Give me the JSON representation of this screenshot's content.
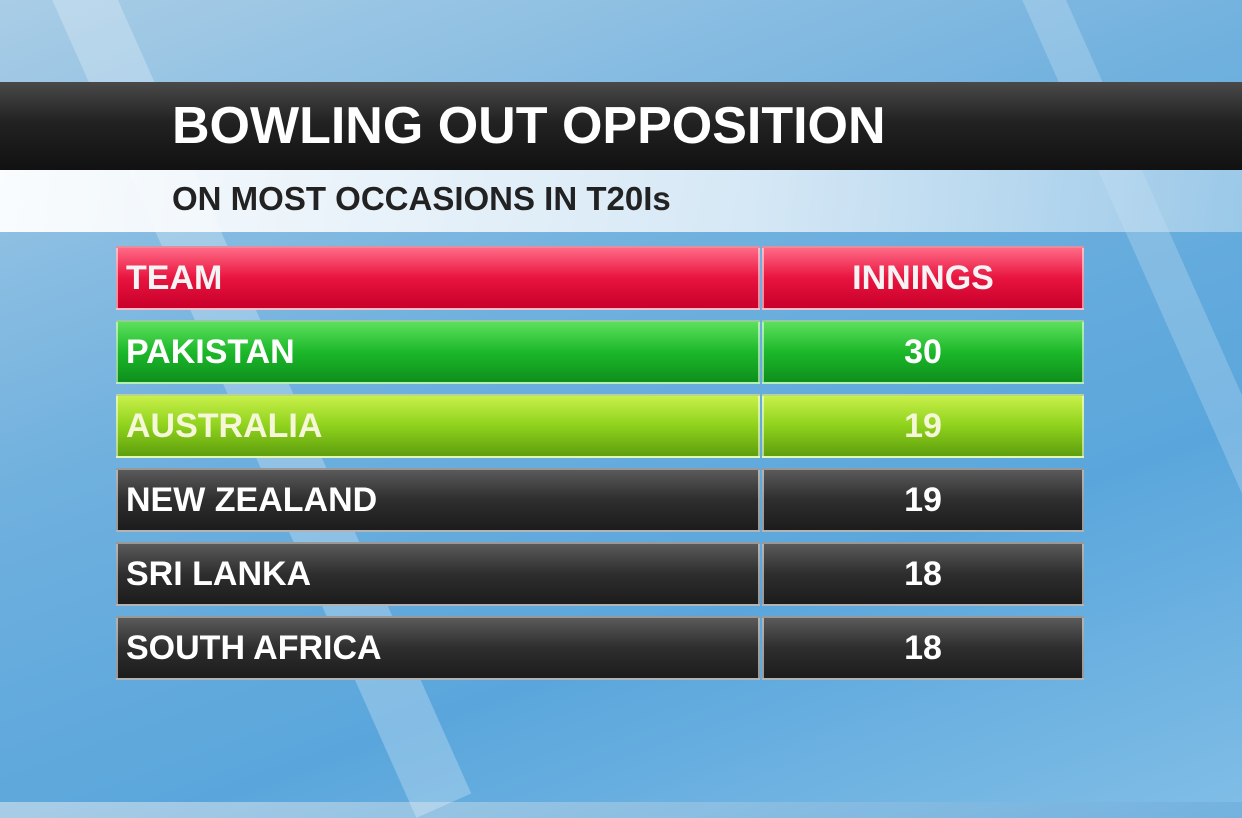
{
  "header": {
    "title": "BOWLING OUT OPPOSITION",
    "subtitle": "ON MOST OCCASIONS IN T20Is"
  },
  "table": {
    "columns": [
      "TEAM",
      "INNINGS"
    ],
    "rows": [
      [
        "PAKISTAN",
        30
      ],
      [
        "AUSTRALIA",
        19
      ],
      [
        "NEW ZEALAND",
        19
      ],
      [
        "SRI LANKA",
        18
      ],
      [
        "SOUTH AFRICA",
        18
      ]
    ]
  }
}
